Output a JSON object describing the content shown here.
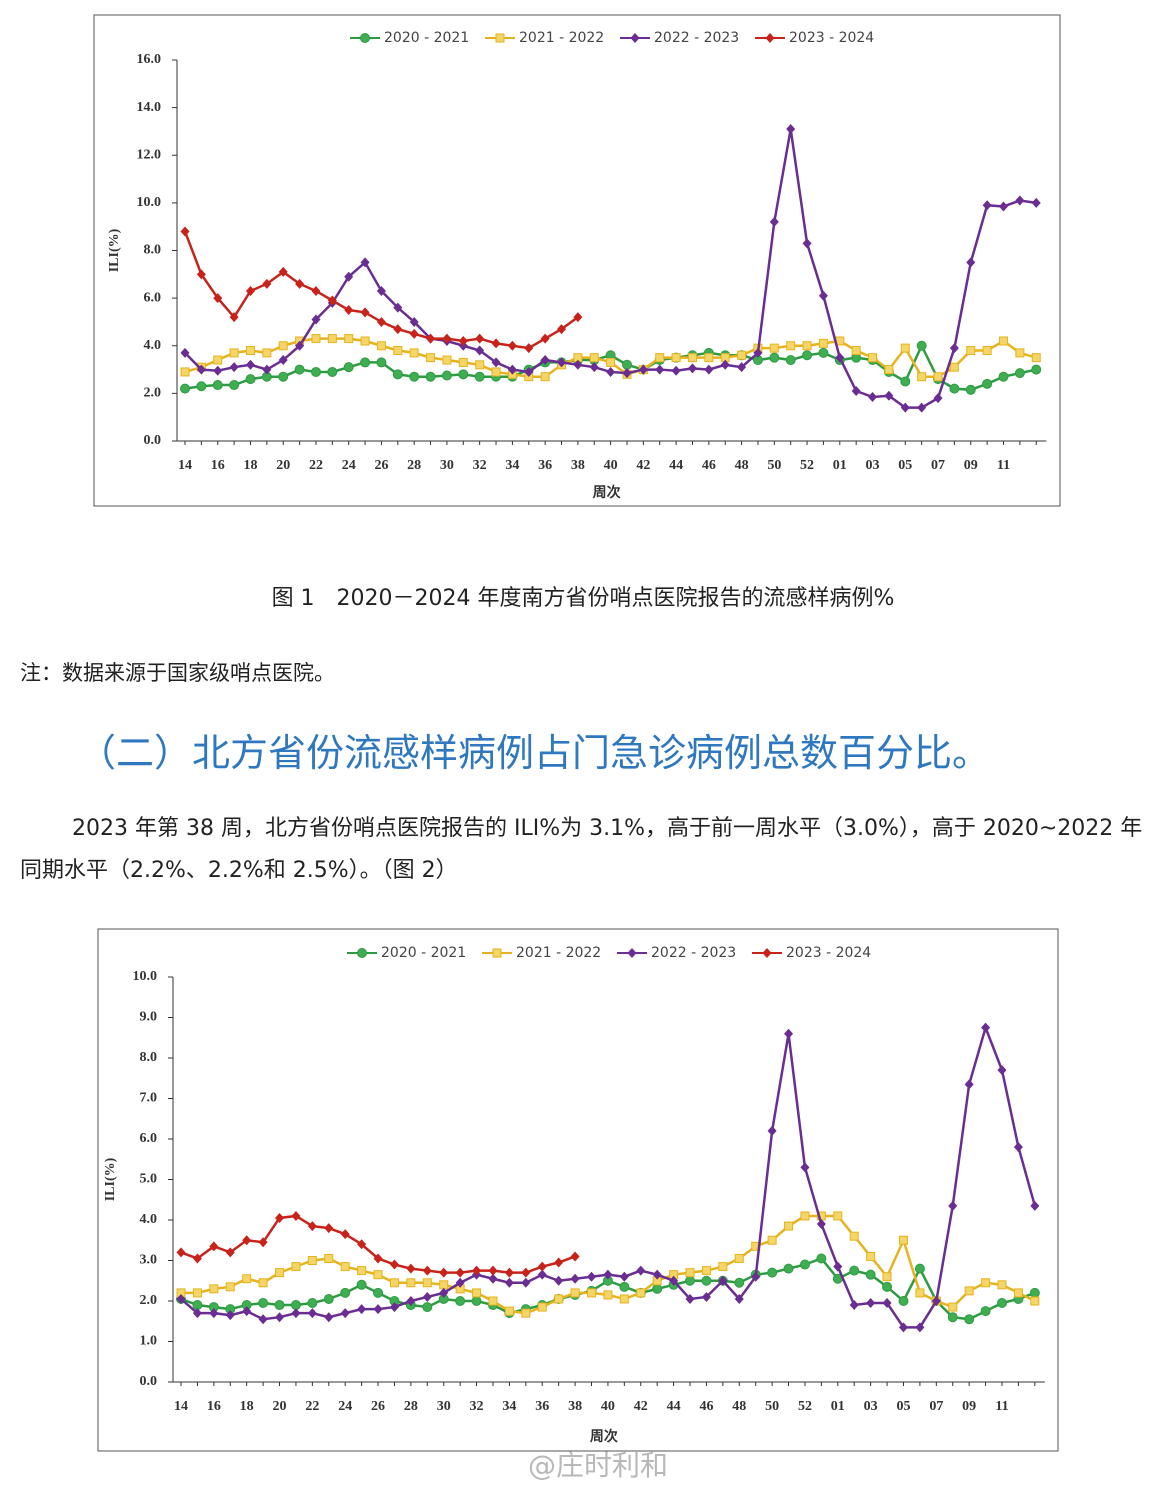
{
  "chart_data": [
    {
      "type": "line",
      "y_label": "ILI(%)",
      "x_label": "周次",
      "legend": "top",
      "categories": [
        "14",
        null,
        "16",
        null,
        "18",
        null,
        "20",
        null,
        "22",
        null,
        "24",
        null,
        "26",
        null,
        "28",
        null,
        "30",
        null,
        "32",
        null,
        "34",
        null,
        "36",
        null,
        "38",
        null,
        "40",
        null,
        "42",
        null,
        "44",
        null,
        "46",
        null,
        "48",
        null,
        "50",
        null,
        "52",
        null,
        "01",
        null,
        "03",
        null,
        "05",
        null,
        "07",
        null,
        "09",
        null,
        "11",
        null,
        null
      ],
      "ylim": [
        0,
        16
      ],
      "yticks": [
        {
          "value": 0,
          "label": "0.0"
        },
        {
          "value": 2,
          "label": "2.0"
        },
        {
          "value": 4,
          "label": "4.0"
        },
        {
          "value": 6,
          "label": "6.0"
        },
        {
          "value": 8,
          "label": "8.0"
        },
        {
          "value": 10,
          "label": "10.0"
        },
        {
          "value": 12,
          "label": "12.0"
        },
        {
          "value": 14,
          "label": "14.0"
        },
        {
          "value": 16,
          "label": "16.0"
        }
      ],
      "series": [
        {
          "name": "2020 - 2021",
          "color": "#2e9b43",
          "marker": "circle",
          "values": [
            2.2,
            2.3,
            2.35,
            2.35,
            2.6,
            2.7,
            2.7,
            3.0,
            2.9,
            2.9,
            3.1,
            3.3,
            3.3,
            2.8,
            2.7,
            2.7,
            2.75,
            2.8,
            2.7,
            2.7,
            2.7,
            3.0,
            3.3,
            3.3,
            3.4,
            3.4,
            3.6,
            3.2,
            3.0,
            3.4,
            3.5,
            3.6,
            3.7,
            3.6,
            3.6,
            3.4,
            3.5,
            3.4,
            3.6,
            3.7,
            3.4,
            3.5,
            3.4,
            2.9,
            2.5,
            4.0,
            2.6,
            2.2,
            2.15,
            2.4,
            2.7,
            2.85,
            3.0
          ]
        },
        {
          "name": "2021 - 2022",
          "color": "#e6b31e",
          "marker": "square",
          "values": [
            2.9,
            3.1,
            3.4,
            3.7,
            3.8,
            3.7,
            4.0,
            4.2,
            4.3,
            4.3,
            4.3,
            4.2,
            4.0,
            3.8,
            3.7,
            3.5,
            3.4,
            3.3,
            3.2,
            2.9,
            2.8,
            2.7,
            2.7,
            3.2,
            3.5,
            3.5,
            3.3,
            2.8,
            3.0,
            3.5,
            3.5,
            3.5,
            3.5,
            3.5,
            3.6,
            3.9,
            3.9,
            4.0,
            4.0,
            4.1,
            4.2,
            3.8,
            3.5,
            3.0,
            3.9,
            2.7,
            2.7,
            3.1,
            3.8,
            3.8,
            4.2,
            3.7,
            3.5
          ]
        },
        {
          "name": "2022 - 2023",
          "color": "#6a2d91",
          "marker": "diamond",
          "values": [
            3.7,
            3.0,
            2.95,
            3.1,
            3.2,
            3.0,
            3.4,
            4.0,
            5.1,
            5.8,
            6.9,
            7.5,
            6.3,
            5.6,
            5.0,
            4.3,
            4.2,
            4.0,
            3.8,
            3.3,
            3.0,
            2.9,
            3.4,
            3.3,
            3.2,
            3.1,
            2.9,
            2.85,
            3.0,
            3.0,
            2.95,
            3.05,
            3.0,
            3.2,
            3.1,
            3.7,
            9.2,
            13.1,
            8.3,
            6.1,
            3.5,
            2.1,
            1.85,
            1.9,
            1.4,
            1.4,
            1.8,
            3.9,
            7.5,
            9.9,
            9.85,
            10.1,
            10.0
          ]
        },
        {
          "name": "2023 - 2024",
          "color": "#c8231b",
          "marker": "diamond",
          "values": [
            8.8,
            7.0,
            6.0,
            5.2,
            6.3,
            6.6,
            7.1,
            6.6,
            6.3,
            5.9,
            5.5,
            5.4,
            5.0,
            4.7,
            4.5,
            4.3,
            4.3,
            4.2,
            4.3,
            4.1,
            4.0,
            3.9,
            4.3,
            4.7,
            5.2,
            null,
            null,
            null,
            null,
            null,
            null,
            null,
            null,
            null,
            null,
            null,
            null,
            null,
            null,
            null,
            null,
            null,
            null,
            null,
            null,
            null,
            null,
            null,
            null,
            null,
            null,
            null,
            null
          ]
        }
      ]
    },
    {
      "type": "line",
      "y_label": "ILI(%)",
      "x_label": "周次",
      "legend": "top",
      "categories": [
        "14",
        null,
        "16",
        null,
        "18",
        null,
        "20",
        null,
        "22",
        null,
        "24",
        null,
        "26",
        null,
        "28",
        null,
        "30",
        null,
        "32",
        null,
        "34",
        null,
        "36",
        null,
        "38",
        null,
        "40",
        null,
        "42",
        null,
        "44",
        null,
        "46",
        null,
        "48",
        null,
        "50",
        null,
        "52",
        null,
        "01",
        null,
        "03",
        null,
        "05",
        null,
        "07",
        null,
        "09",
        null,
        "11",
        null,
        null
      ],
      "ylim": [
        0,
        10
      ],
      "yticks": [
        {
          "value": 0,
          "label": "0.0"
        },
        {
          "value": 1,
          "label": "1.0"
        },
        {
          "value": 2,
          "label": "2.0"
        },
        {
          "value": 3,
          "label": "3.0"
        },
        {
          "value": 4,
          "label": "4.0"
        },
        {
          "value": 5,
          "label": "5.0"
        },
        {
          "value": 6,
          "label": "6.0"
        },
        {
          "value": 7,
          "label": "7.0"
        },
        {
          "value": 8,
          "label": "8.0"
        },
        {
          "value": 9,
          "label": "9.0"
        },
        {
          "value": 10,
          "label": "10.0"
        }
      ],
      "series": [
        {
          "name": "2020 - 2021",
          "color": "#2e9b43",
          "marker": "circle",
          "values": [
            2.05,
            1.9,
            1.85,
            1.8,
            1.9,
            1.95,
            1.9,
            1.9,
            1.95,
            2.05,
            2.2,
            2.4,
            2.2,
            2.0,
            1.9,
            1.85,
            2.05,
            2.0,
            2.0,
            1.9,
            1.7,
            1.8,
            1.9,
            2.05,
            2.15,
            2.25,
            2.5,
            2.35,
            2.2,
            2.3,
            2.4,
            2.5,
            2.5,
            2.5,
            2.45,
            2.65,
            2.7,
            2.8,
            2.9,
            3.05,
            2.55,
            2.75,
            2.65,
            2.35,
            2.0,
            2.8,
            2.0,
            1.6,
            1.55,
            1.75,
            1.95,
            2.05,
            2.2
          ]
        },
        {
          "name": "2021 - 2022",
          "color": "#e6b31e",
          "marker": "square",
          "values": [
            2.2,
            2.2,
            2.3,
            2.35,
            2.55,
            2.45,
            2.7,
            2.85,
            3.0,
            3.05,
            2.85,
            2.75,
            2.65,
            2.45,
            2.45,
            2.45,
            2.4,
            2.3,
            2.2,
            2.0,
            1.75,
            1.7,
            1.85,
            2.05,
            2.2,
            2.2,
            2.15,
            2.05,
            2.2,
            2.5,
            2.65,
            2.7,
            2.75,
            2.85,
            3.05,
            3.35,
            3.5,
            3.85,
            4.1,
            4.1,
            4.1,
            3.6,
            3.1,
            2.6,
            3.5,
            2.2,
            2.0,
            1.85,
            2.25,
            2.45,
            2.4,
            2.2,
            2.0
          ]
        },
        {
          "name": "2022 - 2023",
          "color": "#6a2d91",
          "marker": "diamond",
          "values": [
            2.05,
            1.7,
            1.7,
            1.65,
            1.75,
            1.55,
            1.6,
            1.7,
            1.7,
            1.6,
            1.7,
            1.8,
            1.8,
            1.85,
            2.0,
            2.1,
            2.2,
            2.45,
            2.65,
            2.55,
            2.45,
            2.45,
            2.65,
            2.5,
            2.55,
            2.6,
            2.65,
            2.6,
            2.75,
            2.65,
            2.5,
            2.05,
            2.1,
            2.5,
            2.05,
            2.6,
            6.2,
            8.6,
            5.3,
            3.9,
            2.85,
            1.9,
            1.95,
            1.95,
            1.35,
            1.35,
            2.0,
            4.35,
            7.35,
            8.75,
            7.7,
            5.8,
            4.35
          ]
        },
        {
          "name": "2023 - 2024",
          "color": "#c8231b",
          "marker": "diamond",
          "values": [
            3.2,
            3.05,
            3.35,
            3.2,
            3.5,
            3.45,
            4.05,
            4.1,
            3.85,
            3.8,
            3.65,
            3.4,
            3.05,
            2.9,
            2.8,
            2.75,
            2.7,
            2.7,
            2.75,
            2.75,
            2.7,
            2.7,
            2.85,
            2.95,
            3.1,
            null,
            null,
            null,
            null,
            null,
            null,
            null,
            null,
            null,
            null,
            null,
            null,
            null,
            null,
            null,
            null,
            null,
            null,
            null,
            null,
            null,
            null,
            null,
            null,
            null,
            null,
            null,
            null
          ]
        }
      ]
    }
  ],
  "caption": "图 1　2020－2024 年度南方省份哨点医院报告的流感样病例%",
  "note": "注：数据来源于国家级哨点医院。",
  "heading": "（二）北方省份流感样病例占门急诊病例总数百分比。",
  "paragraph": "2023 年第 38 周，北方省份哨点医院报告的 ILI%为 3.1%，高于前一周水平（3.0%），高于 2020~2022 年同期水平（2.2%、2.2%和 2.5%）。（图 2）",
  "watermark": "@庄时利和"
}
